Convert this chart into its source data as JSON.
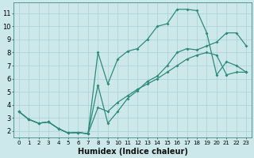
{
  "bg_color": "#cce8eb",
  "grid_color": "#b0d4d8",
  "line_color": "#2e8b7a",
  "marker": "D",
  "markersize": 2.0,
  "linewidth": 0.9,
  "xlabel": "Humidex (Indice chaleur)",
  "xlabel_fontsize": 7,
  "tick_fontsize": 5,
  "ytick_fontsize": 6,
  "yticks": [
    2,
    3,
    4,
    5,
    6,
    7,
    8,
    9,
    10,
    11
  ],
  "xticks": [
    0,
    1,
    2,
    3,
    4,
    5,
    6,
    7,
    8,
    9,
    10,
    11,
    12,
    13,
    14,
    15,
    16,
    17,
    18,
    19,
    20,
    21,
    22,
    23
  ],
  "xlim": [
    -0.5,
    23.5
  ],
  "ylim": [
    1.5,
    11.8
  ],
  "line1_x": [
    0,
    1,
    2,
    3,
    4,
    5,
    6,
    7,
    8,
    9,
    10,
    11,
    12,
    13,
    14,
    15,
    16,
    17,
    18,
    19,
    20,
    21,
    22,
    23
  ],
  "line1_y": [
    3.5,
    2.9,
    2.6,
    2.7,
    2.2,
    1.85,
    1.9,
    1.8,
    5.5,
    2.6,
    3.5,
    4.5,
    5.1,
    5.8,
    6.2,
    7.0,
    8.0,
    8.3,
    8.2,
    8.5,
    8.8,
    9.5,
    9.5,
    8.5
  ],
  "line2_x": [
    0,
    1,
    2,
    3,
    4,
    5,
    6,
    7,
    8,
    9,
    10,
    11,
    12,
    13,
    14,
    15,
    16,
    17,
    18,
    19,
    20,
    21,
    22,
    23
  ],
  "line2_y": [
    3.5,
    2.9,
    2.6,
    2.7,
    2.2,
    1.85,
    1.9,
    1.8,
    8.0,
    5.6,
    7.5,
    8.1,
    8.3,
    9.0,
    10.0,
    10.2,
    11.3,
    11.3,
    11.2,
    9.5,
    6.3,
    7.3,
    7.0,
    6.5
  ],
  "line3_x": [
    0,
    1,
    2,
    3,
    4,
    5,
    6,
    7,
    8,
    9,
    10,
    11,
    12,
    13,
    14,
    15,
    16,
    17,
    18,
    19,
    20,
    21,
    22,
    23
  ],
  "line3_y": [
    3.5,
    2.9,
    2.6,
    2.7,
    2.2,
    1.85,
    1.9,
    1.8,
    3.8,
    3.5,
    4.2,
    4.7,
    5.2,
    5.6,
    6.0,
    6.5,
    7.0,
    7.5,
    7.8,
    8.0,
    7.8,
    6.3,
    6.5,
    6.5
  ]
}
